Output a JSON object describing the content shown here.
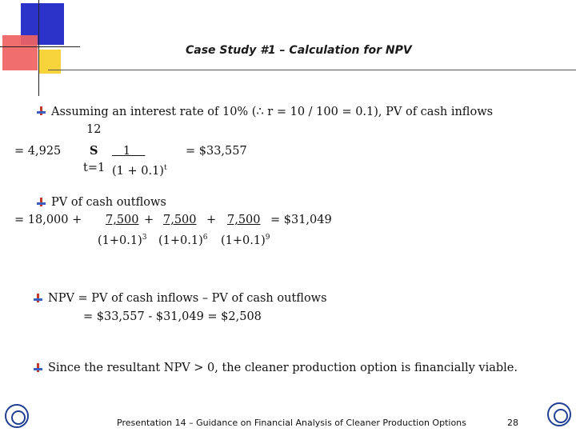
{
  "slide": {
    "title": "Case Study #1 – Calculation for NPV",
    "page_number": "28"
  },
  "block1": {
    "line1": "Assuming an interest rate of 10% (∴ r = 10 / 100 = 0.1), PV of cash inflows",
    "sum_top": "12",
    "eq_lead": "= 4,925",
    "sigma": "S",
    "numerator": "1",
    "eq_result": "= $33,557",
    "sum_bottom": "t=1",
    "denominator": "(1 + 0.1)",
    "den_exp": "t"
  },
  "block2": {
    "line1": "PV of cash outflows",
    "eq_lead": "= 18,000 +",
    "n1": "7,500",
    "plus1": "+",
    "n2": "7,500",
    "plus2": "+",
    "n3": "7,500",
    "eq_result": "= $31,049",
    "d1": "(1+0.1)",
    "e1": "3",
    "d2": "(1+0.1)",
    "e2": "6",
    "d3": "(1+0.1)",
    "e3": "9"
  },
  "block3": {
    "line1": "NPV = PV of cash inflows – PV of cash outflows",
    "line2": "= $33,557 - $31,049 = $2,508"
  },
  "block4": {
    "line1": "Since the resultant NPV > 0, the cleaner production option is financially viable."
  },
  "footer": {
    "text": "Presentation 14 – Guidance on Financial Analysis of Cleaner Production Options",
    "left_logo_label": "UNIDO",
    "right_logo_label": "UNEP"
  },
  "colors": {
    "blue": "#2b33c8",
    "red": "#f06262",
    "yellow": "#f7d53a",
    "bullet_red": "#c0392b",
    "bullet_blue": "#3b5fc0",
    "logo_blue": "#1f3f93"
  }
}
